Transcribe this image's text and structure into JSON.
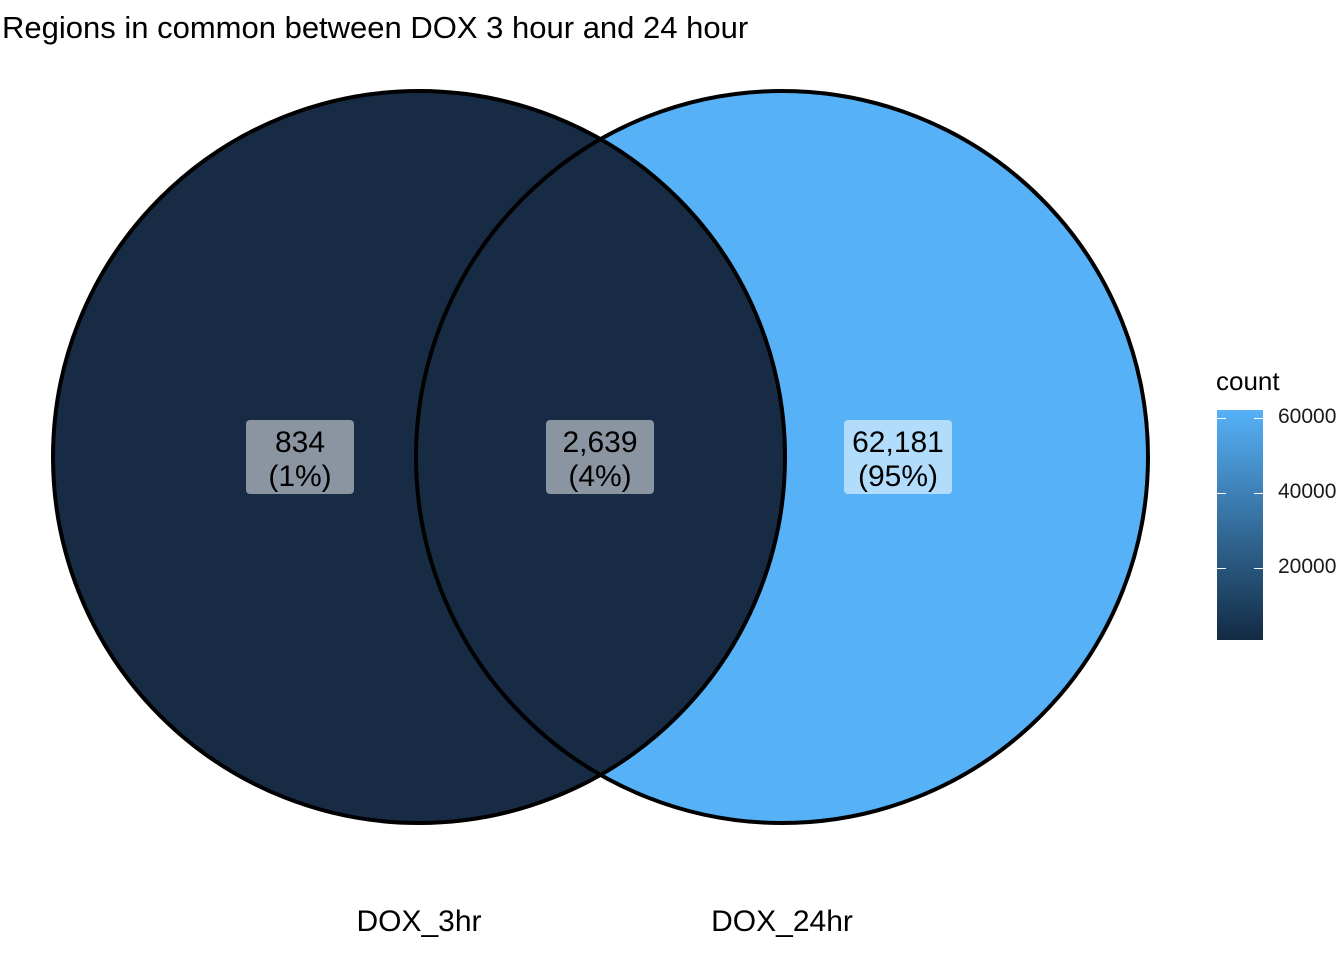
{
  "chart_data": {
    "type": "venn",
    "title": "Regions in common between DOX 3 hour and 24 hour",
    "sets": [
      "DOX_3hr",
      "DOX_24hr"
    ],
    "regions": [
      {
        "id": "only_3hr",
        "sets": [
          "DOX_3hr"
        ],
        "count": 834,
        "count_label": "834",
        "pct_label": "(1%)",
        "fill": "#172b45"
      },
      {
        "id": "both",
        "sets": [
          "DOX_3hr",
          "DOX_24hr"
        ],
        "count": 2639,
        "count_label": "2,639",
        "pct_label": "(4%)",
        "fill": "#172b45"
      },
      {
        "id": "only_24hr",
        "sets": [
          "DOX_24hr"
        ],
        "count": 62181,
        "count_label": "62,181",
        "pct_label": "(95%)",
        "fill": "#56b1f7"
      }
    ],
    "legend": {
      "title": "count",
      "position": "right",
      "ticks": [
        {
          "value": 60000,
          "label": "60000"
        },
        {
          "value": 40000,
          "label": "40000"
        },
        {
          "value": 20000,
          "label": "20000"
        }
      ],
      "range": [
        834,
        62181
      ],
      "low_color": "#132b43",
      "high_color": "#56b1f7"
    }
  }
}
